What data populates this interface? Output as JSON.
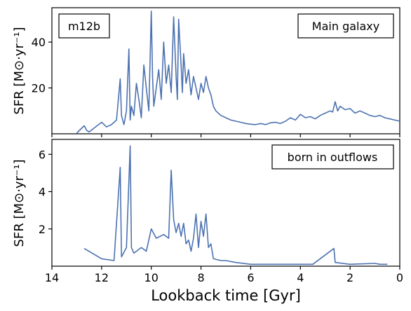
{
  "chart_data": [
    {
      "type": "line",
      "panel_label": "m12b",
      "legend_label": "Main galaxy",
      "ylabel": "SFR [M⊙·yr⁻¹]",
      "xlabel": "",
      "x_reversed": true,
      "xlim": [
        14,
        0
      ],
      "ylim": [
        0,
        55
      ],
      "yticks": [
        "20",
        "40"
      ],
      "line_color": "#4c72b0",
      "series": [
        {
          "x": [
            13.0,
            12.7,
            12.6,
            12.5,
            12.3,
            12.0,
            11.8,
            11.6,
            11.4,
            11.25,
            11.2,
            11.1,
            11.0,
            10.9,
            10.85,
            10.8,
            10.7,
            10.6,
            10.5,
            10.4,
            10.3,
            10.2,
            10.1,
            10.0,
            9.95,
            9.9,
            9.8,
            9.7,
            9.6,
            9.5,
            9.4,
            9.3,
            9.2,
            9.1,
            9.0,
            8.95,
            8.9,
            8.8,
            8.75,
            8.7,
            8.6,
            8.5,
            8.4,
            8.3,
            8.2,
            8.1,
            8.0,
            7.9,
            7.8,
            7.7,
            7.6,
            7.5,
            7.4,
            7.2,
            7.0,
            6.8,
            6.6,
            6.4,
            6.2,
            6.0,
            5.8,
            5.6,
            5.4,
            5.2,
            5.0,
            4.8,
            4.6,
            4.4,
            4.2,
            4.0,
            3.8,
            3.6,
            3.4,
            3.2,
            3.0,
            2.8,
            2.7,
            2.6,
            2.5,
            2.4,
            2.2,
            2.0,
            1.8,
            1.6,
            1.4,
            1.2,
            1.0,
            0.8,
            0.6,
            0.4,
            0.2,
            0.0
          ],
          "y": [
            0.3,
            3.5,
            1.5,
            0.8,
            2.5,
            5.0,
            3.0,
            4.0,
            6.0,
            24.0,
            8.0,
            4.0,
            10.0,
            37.0,
            6.0,
            12.0,
            8.0,
            22.0,
            15.0,
            7.0,
            30.0,
            20.0,
            10.0,
            53.5,
            25.0,
            12.0,
            20.0,
            28.0,
            15.0,
            40.0,
            22.0,
            30.0,
            18.0,
            51.0,
            25.0,
            15.0,
            50.0,
            30.0,
            18.0,
            35.0,
            22.0,
            28.0,
            17.0,
            25.0,
            20.0,
            15.0,
            22.0,
            18.0,
            25.0,
            20.0,
            17.0,
            12.0,
            10.0,
            8.0,
            7.0,
            6.0,
            5.5,
            5.0,
            4.5,
            4.2,
            4.0,
            4.5,
            4.0,
            4.8,
            5.0,
            4.5,
            5.5,
            7.0,
            6.0,
            8.5,
            7.0,
            7.5,
            6.5,
            8.0,
            9.0,
            10.0,
            9.5,
            14.0,
            10.0,
            12.0,
            10.5,
            11.0,
            9.0,
            10.0,
            9.0,
            8.0,
            7.5,
            8.0,
            7.0,
            6.5,
            6.0,
            5.5
          ]
        }
      ]
    },
    {
      "type": "line",
      "legend_label": "born in outflows",
      "ylabel": "SFR [M⊙·yr⁻¹]",
      "xlabel": "Lookback time [Gyr]",
      "x_reversed": true,
      "xlim": [
        14,
        0
      ],
      "ylim": [
        0,
        6.8
      ],
      "xticks": [
        "14",
        "12",
        "10",
        "8",
        "6",
        "4",
        "2",
        "0"
      ],
      "yticks": [
        "2",
        "4",
        "6"
      ],
      "line_color": "#4c72b0",
      "series": [
        {
          "x": [
            12.7,
            12.0,
            11.5,
            11.25,
            11.2,
            11.0,
            10.85,
            10.8,
            10.7,
            10.4,
            10.2,
            10.0,
            9.8,
            9.5,
            9.3,
            9.2,
            9.1,
            9.0,
            8.9,
            8.8,
            8.7,
            8.6,
            8.5,
            8.4,
            8.3,
            8.2,
            8.1,
            8.0,
            7.9,
            7.8,
            7.7,
            7.6,
            7.5,
            7.2,
            7.0,
            6.6,
            6.0,
            5.0,
            3.5,
            2.65,
            2.6,
            2.0,
            1.0,
            0.8,
            0.5
          ],
          "y": [
            0.95,
            0.4,
            0.3,
            5.3,
            0.5,
            1.0,
            6.45,
            1.0,
            0.7,
            1.0,
            0.8,
            2.0,
            1.5,
            1.7,
            1.5,
            5.15,
            2.5,
            1.8,
            2.3,
            1.6,
            2.3,
            1.2,
            1.4,
            0.8,
            1.5,
            2.8,
            1.0,
            2.4,
            1.6,
            2.8,
            1.0,
            1.2,
            0.4,
            0.3,
            0.3,
            0.2,
            0.1,
            0.1,
            0.1,
            0.95,
            0.2,
            0.1,
            0.15,
            0.1,
            0.1
          ]
        }
      ]
    }
  ]
}
